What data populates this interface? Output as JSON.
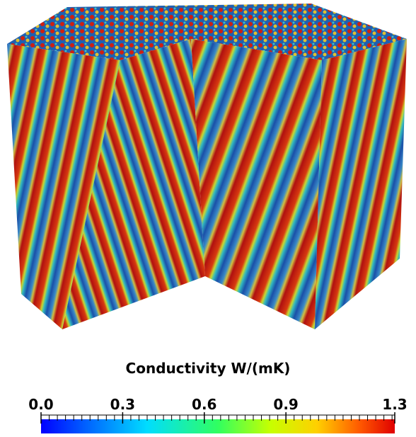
{
  "colorbar": {
    "title": "Conductivity W/(mK)",
    "range": [
      0,
      1.3
    ],
    "ticks": [
      {
        "value": 0,
        "label": "0.0"
      },
      0.3,
      0.6,
      0.9,
      1.3
    ]
  }
}
